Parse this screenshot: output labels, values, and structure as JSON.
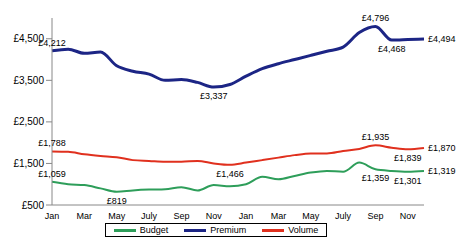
{
  "chart_data": {
    "type": "line",
    "categories": [
      "Jan",
      null,
      "Mar",
      null,
      "May",
      null,
      "July",
      null,
      "Sep",
      null,
      "Nov",
      null,
      "Jan",
      null,
      "Mar",
      null,
      "May",
      null,
      "July",
      null,
      "Sep",
      null,
      "Nov",
      null
    ],
    "series": [
      {
        "name": "Premium",
        "color": "#1c2585",
        "values": [
          4212,
          4250,
          4150,
          4180,
          3850,
          3720,
          3650,
          3500,
          3520,
          3450,
          3337,
          3400,
          3600,
          3780,
          3900,
          4000,
          4100,
          4200,
          4300,
          4650,
          4796,
          4468,
          4480,
          4494
        ],
        "value_labels": [
          "£4,212",
          null,
          null,
          null,
          null,
          null,
          null,
          null,
          null,
          null,
          "£3,337",
          null,
          null,
          null,
          null,
          null,
          null,
          null,
          null,
          null,
          "£4,796",
          "£4,468",
          null,
          "£4,494"
        ]
      },
      {
        "name": "Budget",
        "color": "#2e9e5a",
        "values": [
          1059,
          1000,
          980,
          900,
          819,
          850,
          870,
          880,
          930,
          850,
          980,
          950,
          1000,
          1180,
          1120,
          1200,
          1280,
          1320,
          1300,
          1520,
          1359,
          1320,
          1301,
          1319
        ],
        "value_labels": [
          "£1,059",
          null,
          null,
          null,
          "£819",
          null,
          null,
          null,
          null,
          null,
          null,
          null,
          null,
          null,
          null,
          null,
          null,
          null,
          null,
          null,
          "£1,359",
          null,
          "£1,301",
          "£1,319"
        ]
      },
      {
        "name": "Volume",
        "color": "#e0301e",
        "values": [
          1788,
          1780,
          1720,
          1680,
          1650,
          1580,
          1560,
          1540,
          1540,
          1560,
          1500,
          1466,
          1520,
          1580,
          1640,
          1700,
          1740,
          1740,
          1800,
          1850,
          1935,
          1880,
          1839,
          1870
        ],
        "value_labels": [
          "£1,788",
          null,
          null,
          null,
          null,
          null,
          null,
          null,
          null,
          null,
          null,
          "£1,466",
          null,
          null,
          null,
          null,
          null,
          null,
          null,
          null,
          "£1,935",
          null,
          "£1,839",
          "£1,870"
        ]
      }
    ],
    "ylim": [
      500,
      5000
    ],
    "yticks": [
      {
        "value": 500,
        "label": "£500"
      },
      {
        "value": 1500,
        "label": "£1,500"
      },
      {
        "value": 2500,
        "label": "£2,500"
      },
      {
        "value": 3500,
        "label": "£3,500"
      },
      {
        "value": 4500,
        "label": "£4,500"
      }
    ],
    "grid": false,
    "legend": "bottom",
    "data_labels": true
  }
}
